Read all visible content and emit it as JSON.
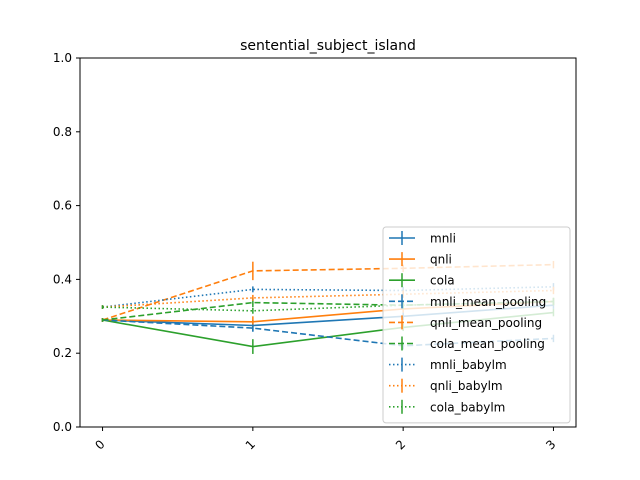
{
  "chart_data": {
    "type": "line",
    "title": "sentential_subject_island",
    "xlabel": "",
    "ylabel": "",
    "x": [
      0,
      1,
      2,
      3
    ],
    "x_tick_labels": [
      "0",
      "1",
      "2",
      "3"
    ],
    "x_tick_rotation_deg": -45,
    "ylim": [
      0.0,
      1.0
    ],
    "y_ticks": [
      0.0,
      0.2,
      0.4,
      0.6,
      0.8,
      1.0
    ],
    "y_tick_labels": [
      "0.0",
      "0.2",
      "0.4",
      "0.6",
      "0.8",
      "1.0"
    ],
    "grid": false,
    "legend_position": "lower-right",
    "series": [
      {
        "name": "mnli",
        "color": "#1f77b4",
        "linestyle": "solid",
        "values": [
          0.29,
          0.275,
          0.3,
          0.33
        ],
        "errors": [
          0.005,
          0.015,
          0.01,
          0.01
        ]
      },
      {
        "name": "qnli",
        "color": "#ff7f0e",
        "linestyle": "solid",
        "values": [
          0.29,
          0.285,
          0.32,
          0.34
        ],
        "errors": [
          0.005,
          0.015,
          0.01,
          0.01
        ]
      },
      {
        "name": "cola",
        "color": "#2ca02c",
        "linestyle": "solid",
        "values": [
          0.29,
          0.218,
          0.27,
          0.31
        ],
        "errors": [
          0.005,
          0.02,
          0.01,
          0.01
        ]
      },
      {
        "name": "mnli_mean_pooling",
        "color": "#1f77b4",
        "linestyle": "dashed",
        "values": [
          0.29,
          0.268,
          0.22,
          0.24
        ],
        "errors": [
          0.005,
          0.01,
          0.01,
          0.01
        ]
      },
      {
        "name": "qnli_mean_pooling",
        "color": "#ff7f0e",
        "linestyle": "dashed",
        "values": [
          0.29,
          0.423,
          0.43,
          0.44
        ],
        "errors": [
          0.005,
          0.025,
          0.01,
          0.01
        ]
      },
      {
        "name": "cola_mean_pooling",
        "color": "#2ca02c",
        "linestyle": "dashed",
        "values": [
          0.29,
          0.337,
          0.33,
          0.34
        ],
        "errors": [
          0.005,
          0.012,
          0.01,
          0.01
        ]
      },
      {
        "name": "mnli_babylm",
        "color": "#1f77b4",
        "linestyle": "dotted",
        "values": [
          0.325,
          0.373,
          0.37,
          0.38
        ],
        "errors": [
          0.005,
          0.008,
          0.01,
          0.01
        ]
      },
      {
        "name": "qnli_babylm",
        "color": "#ff7f0e",
        "linestyle": "dotted",
        "values": [
          0.325,
          0.35,
          0.36,
          0.37
        ],
        "errors": [
          0.005,
          0.008,
          0.01,
          0.01
        ]
      },
      {
        "name": "cola_babylm",
        "color": "#2ca02c",
        "linestyle": "dotted",
        "values": [
          0.325,
          0.315,
          0.33,
          0.34
        ],
        "errors": [
          0.005,
          0.008,
          0.01,
          0.01
        ]
      }
    ]
  }
}
